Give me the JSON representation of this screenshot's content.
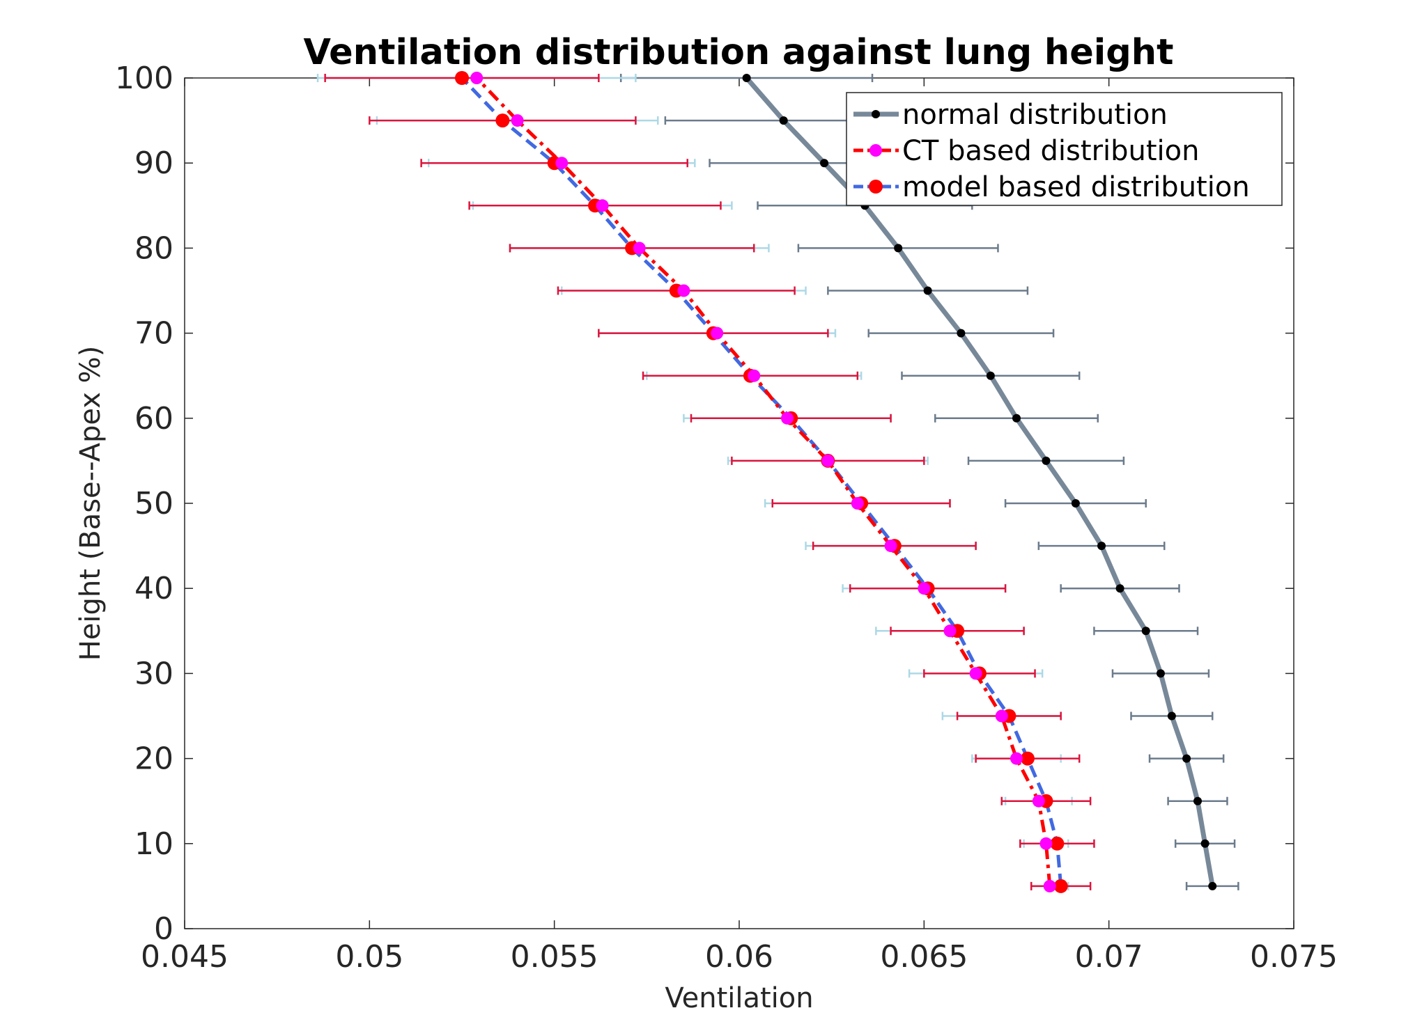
{
  "chart_data": {
    "type": "line",
    "title": "Ventilation distribution against lung height",
    "xlabel": "Ventilation",
    "ylabel": "Height (Base--Apex %)",
    "xlim": [
      0.045,
      0.075
    ],
    "ylim": [
      0,
      100
    ],
    "xticks": [
      "0.045",
      "0.05",
      "0.055",
      "0.06",
      "0.065",
      "0.07",
      "0.075"
    ],
    "yticks": [
      "0",
      "10",
      "20",
      "30",
      "40",
      "50",
      "60",
      "70",
      "80",
      "90",
      "100"
    ],
    "legend_position": "top-right",
    "heights": [
      5,
      10,
      15,
      20,
      25,
      30,
      35,
      40,
      45,
      50,
      55,
      60,
      65,
      70,
      75,
      80,
      85,
      90,
      95,
      100
    ],
    "series": [
      {
        "name": "normal distribution",
        "color": "#778899",
        "marker_color": "#000000",
        "values": [
          0.0728,
          0.0726,
          0.0724,
          0.0721,
          0.0717,
          0.0714,
          0.071,
          0.0703,
          0.0698,
          0.0691,
          0.0683,
          0.0675,
          0.0668,
          0.066,
          0.0651,
          0.0643,
          0.0634,
          0.0623,
          0.0612,
          0.0602
        ],
        "errors": [
          0.0007,
          0.0008,
          0.0008,
          0.001,
          0.0011,
          0.0013,
          0.0014,
          0.0016,
          0.0017,
          0.0019,
          0.0021,
          0.0022,
          0.0024,
          0.0025,
          0.0027,
          0.0027,
          0.0029,
          0.0031,
          0.0032,
          0.0034
        ],
        "error_color": "#6b7b8c"
      },
      {
        "name": "CT based distribution",
        "color": "#ff0000",
        "marker_color": "#ff00ff",
        "values": [
          0.0684,
          0.0683,
          0.0681,
          0.0675,
          0.0671,
          0.0664,
          0.0657,
          0.065,
          0.0641,
          0.0632,
          0.0624,
          0.0613,
          0.0604,
          0.0594,
          0.0585,
          0.0573,
          0.0563,
          0.0552,
          0.054,
          0.0529
        ],
        "errors": [
          0.0005,
          0.0006,
          0.0009,
          0.0012,
          0.0016,
          0.0018,
          0.002,
          0.0022,
          0.0023,
          0.0025,
          0.0027,
          0.0028,
          0.0029,
          0.0032,
          0.0033,
          0.0035,
          0.0035,
          0.0036,
          0.0038,
          0.0043
        ],
        "error_color": "#add8e6"
      },
      {
        "name": "model based distribution",
        "color": "#4169e1",
        "marker_color": "#ff0000",
        "values": [
          0.0687,
          0.0686,
          0.0683,
          0.0678,
          0.0673,
          0.0665,
          0.0659,
          0.0651,
          0.0642,
          0.0633,
          0.0624,
          0.0614,
          0.0603,
          0.0593,
          0.0583,
          0.0571,
          0.0561,
          0.055,
          0.0536,
          0.0525
        ],
        "errors": [
          0.0008,
          0.001,
          0.0012,
          0.0014,
          0.0014,
          0.0015,
          0.0018,
          0.0021,
          0.0022,
          0.0024,
          0.0026,
          0.0027,
          0.0029,
          0.0031,
          0.0032,
          0.0033,
          0.0034,
          0.0036,
          0.0036,
          0.0037
        ],
        "error_color": "#dc143c"
      }
    ]
  }
}
